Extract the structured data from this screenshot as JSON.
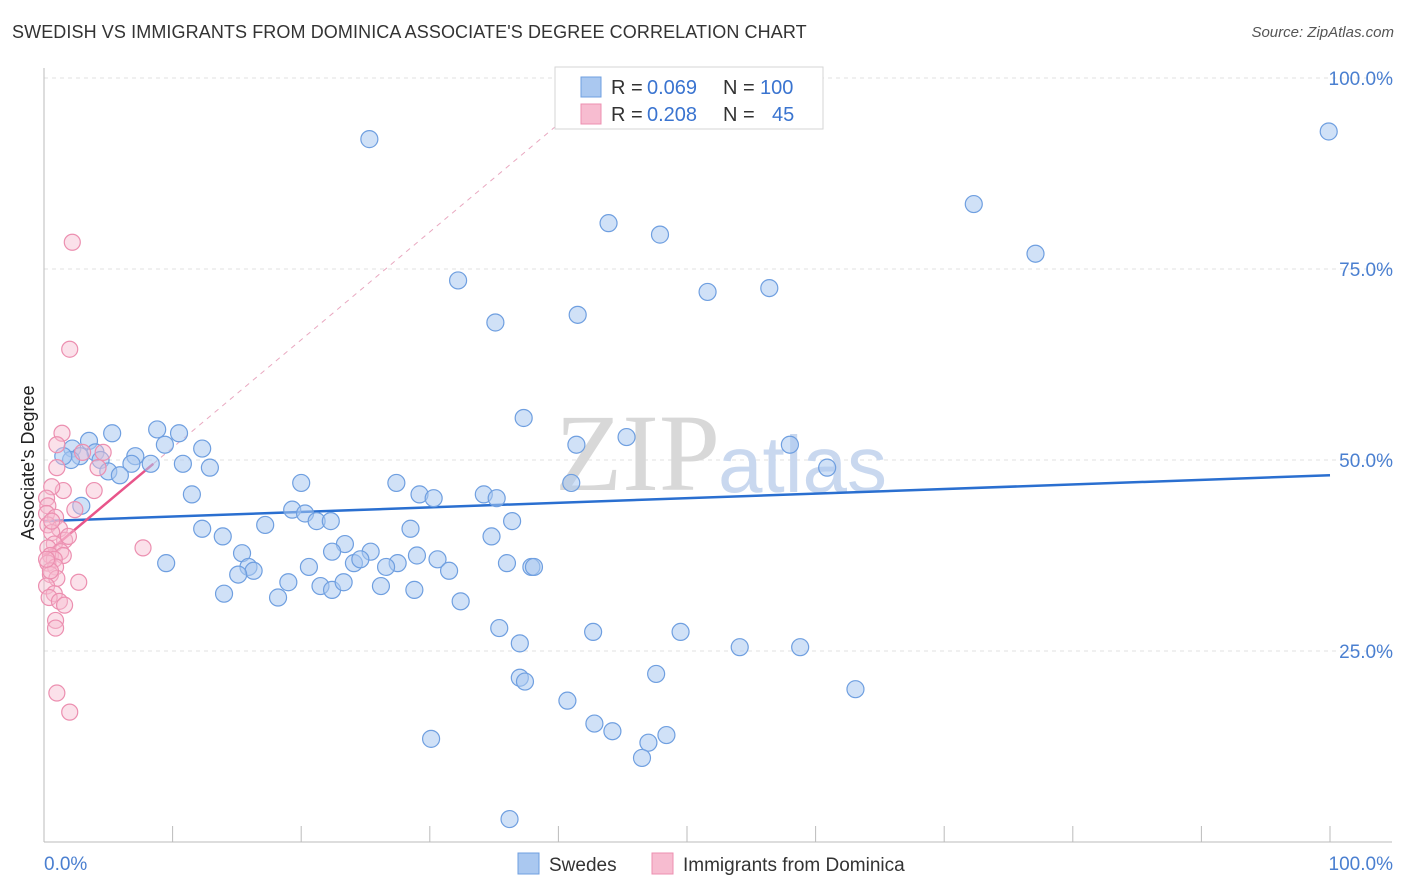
{
  "title": "SWEDISH VS IMMIGRANTS FROM DOMINICA ASSOCIATE'S DEGREE CORRELATION CHART",
  "source": "Source: ZipAtlas.com",
  "watermark": {
    "zip": "ZIP",
    "atlas": "atlas"
  },
  "colors": {
    "swedes_fill": "#aac8f0",
    "swedes_stroke": "#6f9fe0",
    "swedes_line": "#2a6fd0",
    "dominica_fill": "#f7bcd0",
    "dominica_stroke": "#ec8fb0",
    "dominica_line": "#e8558a",
    "grid": "#e2e2e2",
    "axis_text": "#4a7fd0"
  },
  "legend": {
    "rows": [
      {
        "r_label": "R = ",
        "r_value": "0.069",
        "n_label": "N = ",
        "n_value": "100"
      },
      {
        "r_label": "R = ",
        "r_value": "0.208",
        "n_label": "N = ",
        "n_value": "45"
      }
    ]
  },
  "chart_data": {
    "type": "scatter",
    "title": "SWEDISH VS IMMIGRANTS FROM DOMINICA ASSOCIATE'S DEGREE CORRELATION CHART",
    "xlabel": "",
    "ylabel": "Associate's Degree",
    "xlim": [
      0,
      100
    ],
    "ylim": [
      0,
      100
    ],
    "x_ticks": [
      "0.0%",
      "100.0%"
    ],
    "y_ticks": [
      {
        "value": 25,
        "label": "25.0%"
      },
      {
        "value": 50,
        "label": "50.0%"
      },
      {
        "value": 75,
        "label": "75.0%"
      },
      {
        "value": 100,
        "label": "100.0%"
      }
    ],
    "legend_position": "top-center",
    "grid": true,
    "series": [
      {
        "name": "Swedes",
        "R": 0.069,
        "N": 100,
        "trend": {
          "x0": 0,
          "y0": 42.0,
          "x1": 100,
          "y1": 48.0
        },
        "points": [
          [
            25.3,
            92.0
          ],
          [
            99.9,
            93.0
          ],
          [
            72.3,
            83.5
          ],
          [
            43.9,
            81.0
          ],
          [
            47.9,
            79.5
          ],
          [
            77.1,
            77.0
          ],
          [
            32.2,
            73.5
          ],
          [
            51.6,
            72.0
          ],
          [
            56.4,
            72.5
          ],
          [
            41.5,
            69.0
          ],
          [
            35.1,
            68.0
          ],
          [
            37.3,
            55.5
          ],
          [
            5.3,
            53.5
          ],
          [
            8.8,
            54.0
          ],
          [
            10.5,
            53.5
          ],
          [
            3.5,
            52.5
          ],
          [
            9.4,
            52.0
          ],
          [
            2.2,
            51.5
          ],
          [
            12.3,
            51.5
          ],
          [
            4.0,
            51.0
          ],
          [
            7.1,
            50.5
          ],
          [
            2.8,
            50.5
          ],
          [
            2.1,
            50.0
          ],
          [
            4.4,
            50.0
          ],
          [
            6.8,
            49.5
          ],
          [
            8.3,
            49.5
          ],
          [
            1.5,
            50.5
          ],
          [
            10.8,
            49.5
          ],
          [
            12.9,
            49.0
          ],
          [
            5.0,
            48.5
          ],
          [
            5.9,
            48.0
          ],
          [
            41.4,
            52.0
          ],
          [
            58.0,
            52.0
          ],
          [
            45.3,
            53.0
          ],
          [
            60.9,
            49.0
          ],
          [
            27.4,
            47.0
          ],
          [
            20.0,
            47.0
          ],
          [
            41.0,
            47.0
          ],
          [
            11.5,
            45.5
          ],
          [
            29.2,
            45.5
          ],
          [
            30.3,
            45.0
          ],
          [
            34.2,
            45.5
          ],
          [
            35.2,
            45.0
          ],
          [
            2.9,
            44.0
          ],
          [
            19.3,
            43.5
          ],
          [
            20.3,
            43.0
          ],
          [
            21.2,
            42.0
          ],
          [
            12.3,
            41.0
          ],
          [
            17.2,
            41.5
          ],
          [
            22.3,
            42.0
          ],
          [
            36.4,
            42.0
          ],
          [
            28.5,
            41.0
          ],
          [
            34.8,
            40.0
          ],
          [
            13.9,
            40.0
          ],
          [
            23.4,
            39.0
          ],
          [
            22.4,
            38.0
          ],
          [
            15.4,
            37.8
          ],
          [
            25.4,
            38.0
          ],
          [
            9.5,
            36.5
          ],
          [
            15.9,
            36.0
          ],
          [
            16.3,
            35.5
          ],
          [
            20.6,
            36.0
          ],
          [
            27.5,
            36.5
          ],
          [
            29.0,
            37.5
          ],
          [
            30.6,
            37.0
          ],
          [
            26.6,
            36.0
          ],
          [
            24.1,
            36.5
          ],
          [
            24.6,
            37.0
          ],
          [
            36.0,
            36.5
          ],
          [
            37.9,
            36.0
          ],
          [
            38.1,
            36.0
          ],
          [
            19.0,
            34.0
          ],
          [
            21.5,
            33.5
          ],
          [
            22.4,
            33.0
          ],
          [
            23.3,
            34.0
          ],
          [
            26.2,
            33.5
          ],
          [
            28.8,
            33.0
          ],
          [
            14.0,
            32.5
          ],
          [
            15.1,
            35.0
          ],
          [
            18.2,
            32.0
          ],
          [
            31.5,
            35.5
          ],
          [
            32.4,
            31.5
          ],
          [
            35.4,
            28.0
          ],
          [
            37.0,
            26.0
          ],
          [
            42.7,
            27.5
          ],
          [
            49.5,
            27.5
          ],
          [
            58.8,
            25.5
          ],
          [
            54.1,
            25.5
          ],
          [
            63.1,
            20.0
          ],
          [
            37.0,
            21.5
          ],
          [
            47.6,
            22.0
          ],
          [
            40.7,
            18.5
          ],
          [
            30.1,
            13.5
          ],
          [
            47.0,
            13.0
          ],
          [
            42.8,
            15.5
          ],
          [
            44.2,
            14.5
          ],
          [
            46.5,
            11.0
          ],
          [
            48.4,
            14.0
          ],
          [
            36.2,
            3.0
          ],
          [
            37.4,
            21.0
          ]
        ]
      },
      {
        "name": "Immigrants from Dominica",
        "R": 0.208,
        "N": 45,
        "trend": {
          "x0": 0,
          "y0": 37.5,
          "x1": 8.5,
          "y1": 49.5
        },
        "points": [
          [
            2.2,
            78.5
          ],
          [
            2.0,
            64.5
          ],
          [
            1.4,
            53.5
          ],
          [
            1.0,
            52.0
          ],
          [
            4.6,
            51.0
          ],
          [
            3.0,
            51.0
          ],
          [
            4.2,
            49.0
          ],
          [
            1.0,
            49.0
          ],
          [
            1.5,
            46.0
          ],
          [
            3.9,
            46.0
          ],
          [
            0.6,
            46.5
          ],
          [
            0.2,
            45.0
          ],
          [
            0.3,
            44.0
          ],
          [
            0.2,
            43.0
          ],
          [
            2.4,
            43.5
          ],
          [
            0.9,
            42.5
          ],
          [
            0.3,
            41.5
          ],
          [
            1.2,
            41.0
          ],
          [
            0.6,
            40.5
          ],
          [
            1.6,
            39.5
          ],
          [
            0.8,
            39.0
          ],
          [
            7.7,
            38.5
          ],
          [
            0.3,
            38.5
          ],
          [
            1.3,
            38.0
          ],
          [
            0.5,
            37.5
          ],
          [
            1.5,
            37.5
          ],
          [
            0.8,
            37.0
          ],
          [
            0.3,
            36.5
          ],
          [
            0.9,
            36.0
          ],
          [
            0.5,
            35.0
          ],
          [
            1.0,
            34.5
          ],
          [
            2.7,
            34.0
          ],
          [
            0.2,
            33.5
          ],
          [
            0.8,
            32.5
          ],
          [
            0.4,
            32.0
          ],
          [
            1.2,
            31.5
          ],
          [
            1.6,
            31.0
          ],
          [
            0.9,
            29.0
          ],
          [
            0.9,
            28.0
          ],
          [
            1.0,
            19.5
          ],
          [
            2.0,
            17.0
          ],
          [
            0.5,
            35.5
          ],
          [
            0.2,
            37.0
          ],
          [
            1.9,
            40.0
          ],
          [
            0.6,
            42.0
          ]
        ]
      }
    ]
  },
  "bottom_legend": [
    {
      "label": "Swedes"
    },
    {
      "label": "Immigrants from Dominica"
    }
  ]
}
